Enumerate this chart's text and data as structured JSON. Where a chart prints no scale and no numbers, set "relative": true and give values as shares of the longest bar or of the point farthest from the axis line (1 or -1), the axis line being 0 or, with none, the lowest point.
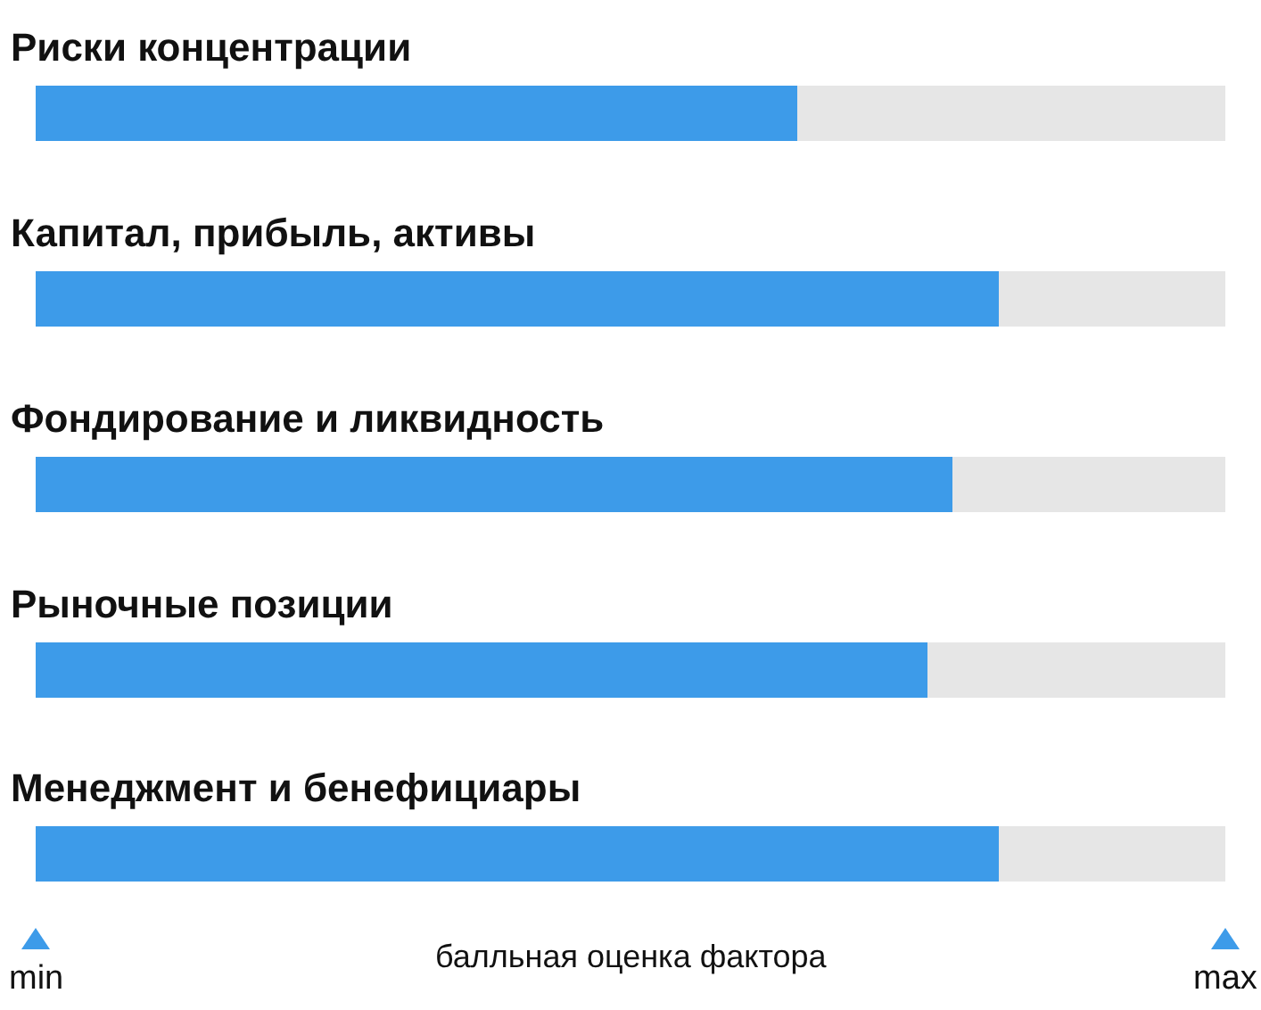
{
  "chart_data": {
    "type": "bar",
    "orientation": "horizontal",
    "stacked": true,
    "categories": [
      "Риски концентрации",
      "Капитал, прибыль, активы",
      "Фондирование и ликвидность",
      "Рыночные позиции",
      "Менеджмент и бенефициары"
    ],
    "series": [
      {
        "color": "#3d9be9",
        "values": [
          0.64,
          0.81,
          0.77,
          0.75,
          0.81
        ]
      },
      {
        "color": "#e6e6e6",
        "values": [
          0.36,
          0.19,
          0.23,
          0.25,
          0.19
        ]
      }
    ],
    "relative": true,
    "annotations": [
      "min",
      "max"
    ],
    "xlabel": "балльная оценка фактора"
  }
}
